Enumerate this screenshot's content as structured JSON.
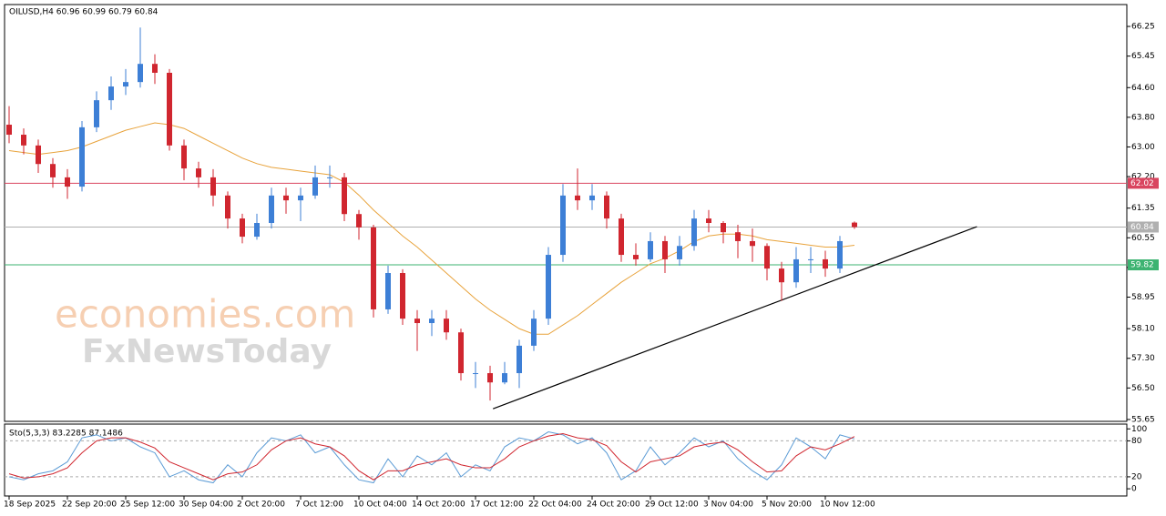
{
  "chart_data": {
    "type": "candlestick",
    "title": "OILUSD,H4  60.96 60.99 60.79 60.84",
    "watermark": [
      "economies.com",
      "FxNewsToday"
    ],
    "up_color": "#3d7fd6",
    "down_color": "#d0262f",
    "categories": [
      "18 Sep 2025",
      null,
      null,
      null,
      "22 Sep 20:00",
      null,
      null,
      null,
      "25 Sep 12:00",
      null,
      null,
      null,
      "30 Sep 04:00",
      null,
      null,
      null,
      "2 Oct 20:00",
      null,
      null,
      null,
      "7 Oct 12:00",
      null,
      null,
      null,
      "10 Oct 04:00",
      null,
      null,
      null,
      "14 Oct 20:00",
      null,
      null,
      null,
      "17 Oct 12:00",
      null,
      null,
      null,
      "22 Oct 04:00",
      null,
      null,
      null,
      "24 Oct 20:00",
      null,
      null,
      null,
      "29 Oct 12:00",
      null,
      null,
      null,
      "3 Nov 04:00",
      null,
      null,
      null,
      "5 Nov 20:00",
      null,
      null,
      null,
      "10 Nov 12:00",
      null,
      null
    ],
    "open": [
      63.6,
      63.33,
      63.04,
      62.54,
      62.18,
      61.93,
      63.53,
      64.26,
      64.63,
      64.75,
      65.24,
      65.0,
      63.04,
      62.42,
      62.18,
      61.69,
      61.07,
      60.58,
      60.95,
      61.69,
      61.56,
      61.69,
      62.18,
      62.18,
      61.19,
      60.83,
      58.62,
      59.6,
      58.37,
      58.25,
      58.37,
      58.0,
      56.9,
      56.9,
      56.65,
      56.9,
      57.64,
      58.37,
      60.09,
      61.69,
      61.56,
      61.69,
      61.07,
      60.09,
      59.97,
      60.46,
      59.97,
      60.33,
      61.07,
      60.95,
      60.7,
      60.46,
      60.33,
      59.72,
      59.35,
      59.97,
      59.97,
      59.72,
      60.96
    ],
    "high": [
      64.1,
      63.5,
      63.2,
      62.7,
      62.4,
      63.7,
      64.5,
      64.9,
      65.1,
      66.22,
      65.5,
      65.1,
      63.2,
      62.6,
      62.4,
      61.8,
      61.2,
      61.2,
      61.9,
      61.9,
      61.9,
      62.5,
      62.5,
      62.3,
      61.3,
      60.9,
      59.8,
      59.7,
      58.6,
      58.6,
      58.6,
      58.1,
      57.2,
      57.1,
      57.2,
      57.8,
      58.6,
      60.3,
      62.0,
      62.42,
      62.0,
      61.8,
      61.2,
      60.4,
      60.7,
      60.6,
      60.6,
      61.3,
      61.3,
      61.0,
      60.9,
      60.8,
      60.4,
      59.9,
      60.3,
      60.3,
      60.2,
      60.6,
      60.99
    ],
    "low": [
      63.1,
      62.8,
      62.3,
      61.9,
      61.6,
      61.8,
      63.4,
      64.0,
      64.4,
      64.6,
      64.7,
      62.9,
      62.1,
      61.9,
      61.4,
      60.8,
      60.4,
      60.5,
      60.8,
      61.2,
      61.0,
      61.6,
      61.9,
      61.0,
      60.5,
      58.4,
      58.5,
      58.2,
      57.5,
      57.9,
      57.8,
      56.7,
      56.5,
      56.16,
      56.6,
      56.5,
      57.5,
      58.2,
      59.9,
      61.3,
      61.3,
      60.8,
      59.9,
      59.8,
      59.9,
      59.6,
      59.8,
      60.2,
      60.7,
      60.4,
      60.0,
      59.9,
      59.4,
      58.85,
      59.2,
      59.6,
      59.5,
      59.6,
      60.79
    ],
    "close": [
      63.33,
      63.04,
      62.54,
      62.18,
      61.93,
      63.53,
      64.26,
      64.63,
      64.75,
      65.24,
      65.0,
      63.04,
      62.42,
      62.18,
      61.69,
      61.07,
      60.58,
      60.95,
      61.69,
      61.56,
      61.69,
      62.18,
      62.18,
      61.19,
      60.83,
      58.62,
      59.6,
      58.37,
      58.25,
      58.37,
      58.0,
      56.9,
      56.9,
      56.65,
      56.9,
      57.64,
      58.37,
      60.09,
      61.69,
      61.56,
      61.69,
      61.07,
      60.09,
      59.97,
      60.46,
      59.97,
      60.33,
      61.07,
      60.95,
      60.7,
      60.46,
      60.33,
      59.72,
      59.35,
      59.97,
      59.97,
      59.72,
      60.46,
      60.84
    ],
    "moving_average": {
      "color": "#e8a33c",
      "values": [
        62.9,
        62.85,
        62.8,
        62.85,
        62.9,
        63.0,
        63.15,
        63.3,
        63.45,
        63.55,
        63.65,
        63.6,
        63.5,
        63.3,
        63.1,
        62.9,
        62.7,
        62.55,
        62.45,
        62.4,
        62.35,
        62.3,
        62.25,
        62.05,
        61.7,
        61.3,
        60.95,
        60.6,
        60.3,
        59.95,
        59.6,
        59.25,
        58.9,
        58.6,
        58.35,
        58.1,
        57.95,
        57.95,
        58.2,
        58.45,
        58.75,
        59.05,
        59.35,
        59.6,
        59.85,
        60.0,
        60.2,
        60.45,
        60.6,
        60.65,
        60.65,
        60.6,
        60.5,
        60.45,
        60.4,
        60.35,
        60.3,
        60.3,
        60.35
      ]
    },
    "levels": [
      {
        "value": 62.02,
        "color": "#d9455f"
      },
      {
        "value": 60.84,
        "color": "#b0b0b0"
      },
      {
        "value": 59.82,
        "color": "#3cb371"
      }
    ],
    "trendline": {
      "x": [
        33.2,
        66.4
      ],
      "y": [
        55.94,
        60.85
      ],
      "color": "#000000"
    },
    "ylim": [
      55.6,
      66.84
    ],
    "yticks": [
      {
        "value": 66.25,
        "label": "66.25"
      },
      {
        "value": 65.45,
        "label": "65.45"
      },
      {
        "value": 64.6,
        "label": "64.60"
      },
      {
        "value": 63.8,
        "label": "63.80"
      },
      {
        "value": 63.0,
        "label": "63.00"
      },
      {
        "value": 62.2,
        "label": "62.20"
      },
      {
        "value": 61.35,
        "label": "61.35"
      },
      {
        "value": 60.55,
        "label": "60.55"
      },
      {
        "value": 59.75,
        "label": "59.75"
      },
      {
        "value": 58.95,
        "label": "58.95"
      },
      {
        "value": 58.1,
        "label": "58.10"
      },
      {
        "value": 57.3,
        "label": "57.30"
      },
      {
        "value": 56.5,
        "label": "56.50"
      },
      {
        "value": 55.65,
        "label": "55.65"
      }
    ],
    "indicator": {
      "title": "Sto(5,3,3) 83.2285 87.1486",
      "ylim": [
        -12,
        108
      ],
      "yticks": [
        100,
        80,
        20,
        0
      ],
      "dashed_levels": [
        80,
        20
      ],
      "series": [
        {
          "name": "%K",
          "color": "#5b9bd5",
          "values": [
            20,
            15,
            25,
            30,
            45,
            85,
            90,
            80,
            85,
            70,
            60,
            20,
            30,
            15,
            10,
            40,
            20,
            60,
            85,
            80,
            90,
            60,
            70,
            40,
            15,
            10,
            50,
            20,
            55,
            40,
            60,
            20,
            40,
            30,
            70,
            85,
            80,
            95,
            90,
            75,
            85,
            60,
            15,
            30,
            70,
            40,
            60,
            85,
            70,
            80,
            50,
            30,
            15,
            40,
            85,
            70,
            50,
            90,
            83.2285
          ]
        },
        {
          "name": "%D",
          "color": "#d0262f",
          "values": [
            25,
            18,
            20,
            25,
            35,
            60,
            80,
            85,
            85,
            78,
            68,
            45,
            35,
            25,
            15,
            25,
            28,
            40,
            65,
            80,
            85,
            75,
            70,
            55,
            30,
            15,
            30,
            30,
            40,
            45,
            50,
            40,
            35,
            35,
            50,
            70,
            80,
            88,
            92,
            85,
            82,
            72,
            45,
            28,
            45,
            50,
            55,
            70,
            75,
            78,
            65,
            45,
            28,
            30,
            55,
            70,
            65,
            75,
            87.1486
          ]
        }
      ]
    }
  }
}
